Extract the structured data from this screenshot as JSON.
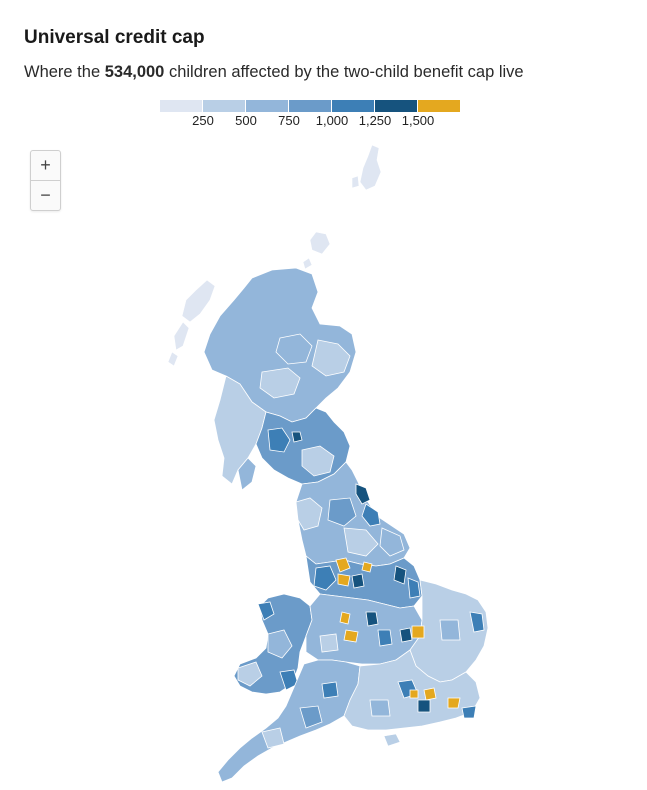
{
  "header": {
    "title": "Universal credit cap",
    "subtitle_pre": "Where the ",
    "subtitle_bold": "534,000",
    "subtitle_post": " children affected by the two-child benefit cap live"
  },
  "legend": {
    "colors": [
      "#dfe6f2",
      "#b9cfe6",
      "#93b6da",
      "#6b9bc9",
      "#3d7fb6",
      "#16537e",
      "#e4a81f"
    ],
    "labels": [
      "250",
      "500",
      "750",
      "1,000",
      "1,250",
      "1,500"
    ]
  },
  "zoom": {
    "in_label": "+",
    "out_label": "−"
  }
}
